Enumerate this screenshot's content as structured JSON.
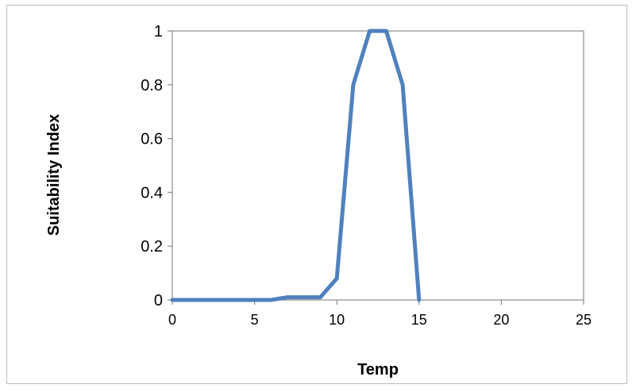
{
  "chart_data": {
    "type": "line",
    "title": "",
    "xlabel": "Temp",
    "ylabel": "Suitability Index",
    "xlim": [
      0,
      25
    ],
    "ylim": [
      0,
      1
    ],
    "x_ticks": [
      0,
      5,
      10,
      15,
      20,
      25
    ],
    "y_ticks": [
      0,
      0.2,
      0.4,
      0.6,
      0.8,
      1
    ],
    "x_tick_labels": [
      "0",
      "5",
      "10",
      "15",
      "20",
      "25"
    ],
    "y_tick_labels": [
      "0",
      "0.2",
      "0.4",
      "0.6",
      "0.8",
      "1"
    ],
    "grid": false,
    "legend": "none",
    "series": [
      {
        "color": "#4f81bd",
        "x": [
          0,
          1,
          2,
          3,
          4,
          5,
          6,
          7,
          8,
          9,
          10,
          11,
          12,
          13,
          14,
          15
        ],
        "y": [
          0,
          0,
          0,
          0,
          0,
          0,
          0,
          0.01,
          0.01,
          0.01,
          0.08,
          0.8,
          1,
          1,
          0.8,
          0
        ]
      }
    ]
  }
}
